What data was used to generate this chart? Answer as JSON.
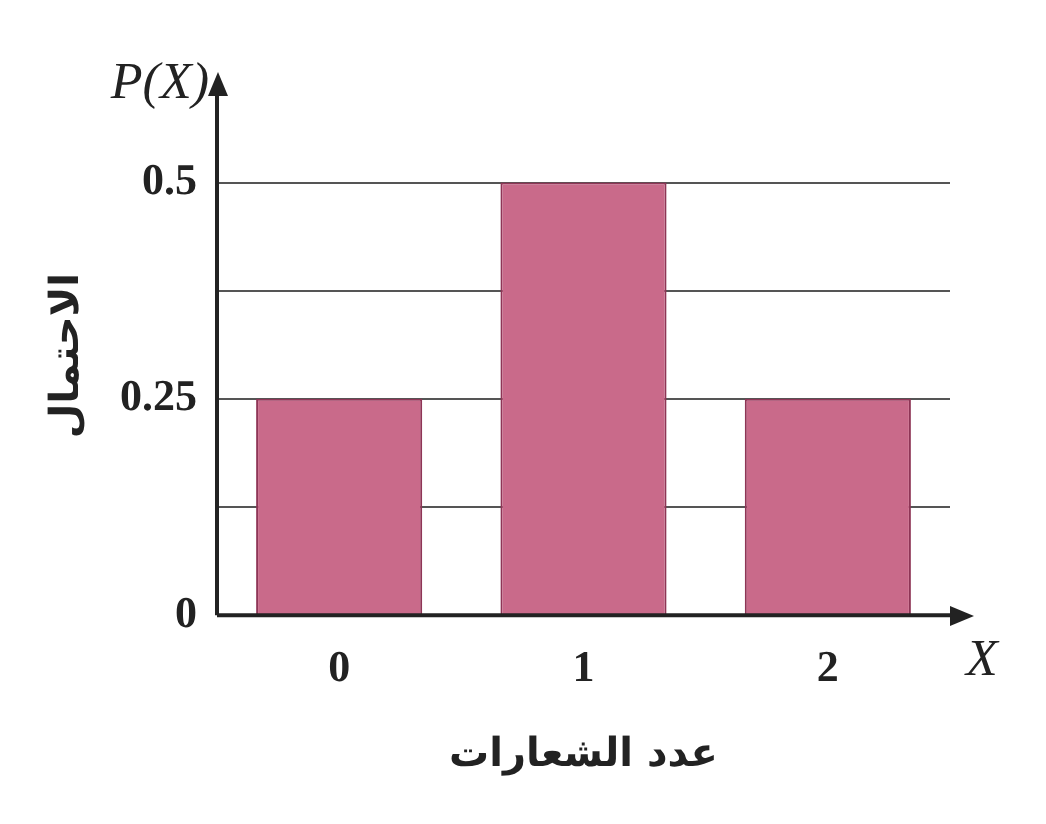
{
  "chart_data": {
    "type": "bar",
    "xlabel": "عدد الشعارات",
    "ylabel": "الاحتمال",
    "annotations": [
      "P(X)",
      "X"
    ],
    "categories": [
      "0",
      "1",
      "2"
    ],
    "values": [
      0.25,
      0.5,
      0.25
    ],
    "color": "#c96a8a",
    "ylim": [
      0,
      0.6
    ],
    "yticks": [
      0,
      {
        "value": 0.125,
        "label": null
      },
      0.25,
      {
        "value": 0.375,
        "label": null
      },
      0.5
    ],
    "grid": "y",
    "legend": false
  }
}
